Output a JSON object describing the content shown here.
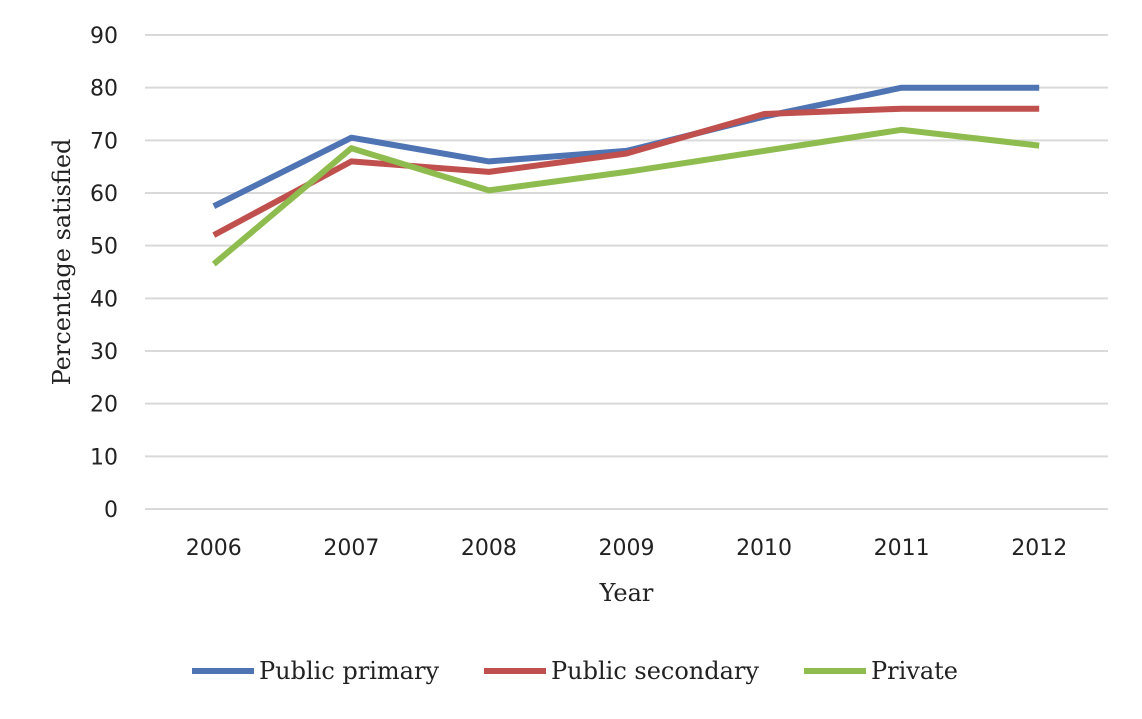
{
  "chart_data": {
    "type": "line",
    "categories": [
      "2006",
      "2007",
      "2008",
      "2009",
      "2010",
      "2011",
      "2012"
    ],
    "series": [
      {
        "name": "Public primary",
        "color": "#4f74b3",
        "values": [
          57.5,
          70.5,
          66,
          68,
          74.5,
          80,
          80
        ]
      },
      {
        "name": "Public secondary",
        "color": "#c0504d",
        "values": [
          52,
          66,
          64,
          67.5,
          75,
          76,
          76
        ]
      },
      {
        "name": "Private",
        "color": "#8fbc4f",
        "values": [
          46.5,
          68.5,
          60.5,
          64,
          68,
          72,
          69
        ]
      }
    ],
    "xlabel": "Year",
    "ylabel": "Percentage  satisfied",
    "ylim": [
      0,
      90
    ],
    "yticks": [
      "0",
      "10",
      "20",
      "30",
      "40",
      "50",
      "60",
      "70",
      "80",
      "90"
    ],
    "grid": true,
    "legend_position": "bottom"
  }
}
